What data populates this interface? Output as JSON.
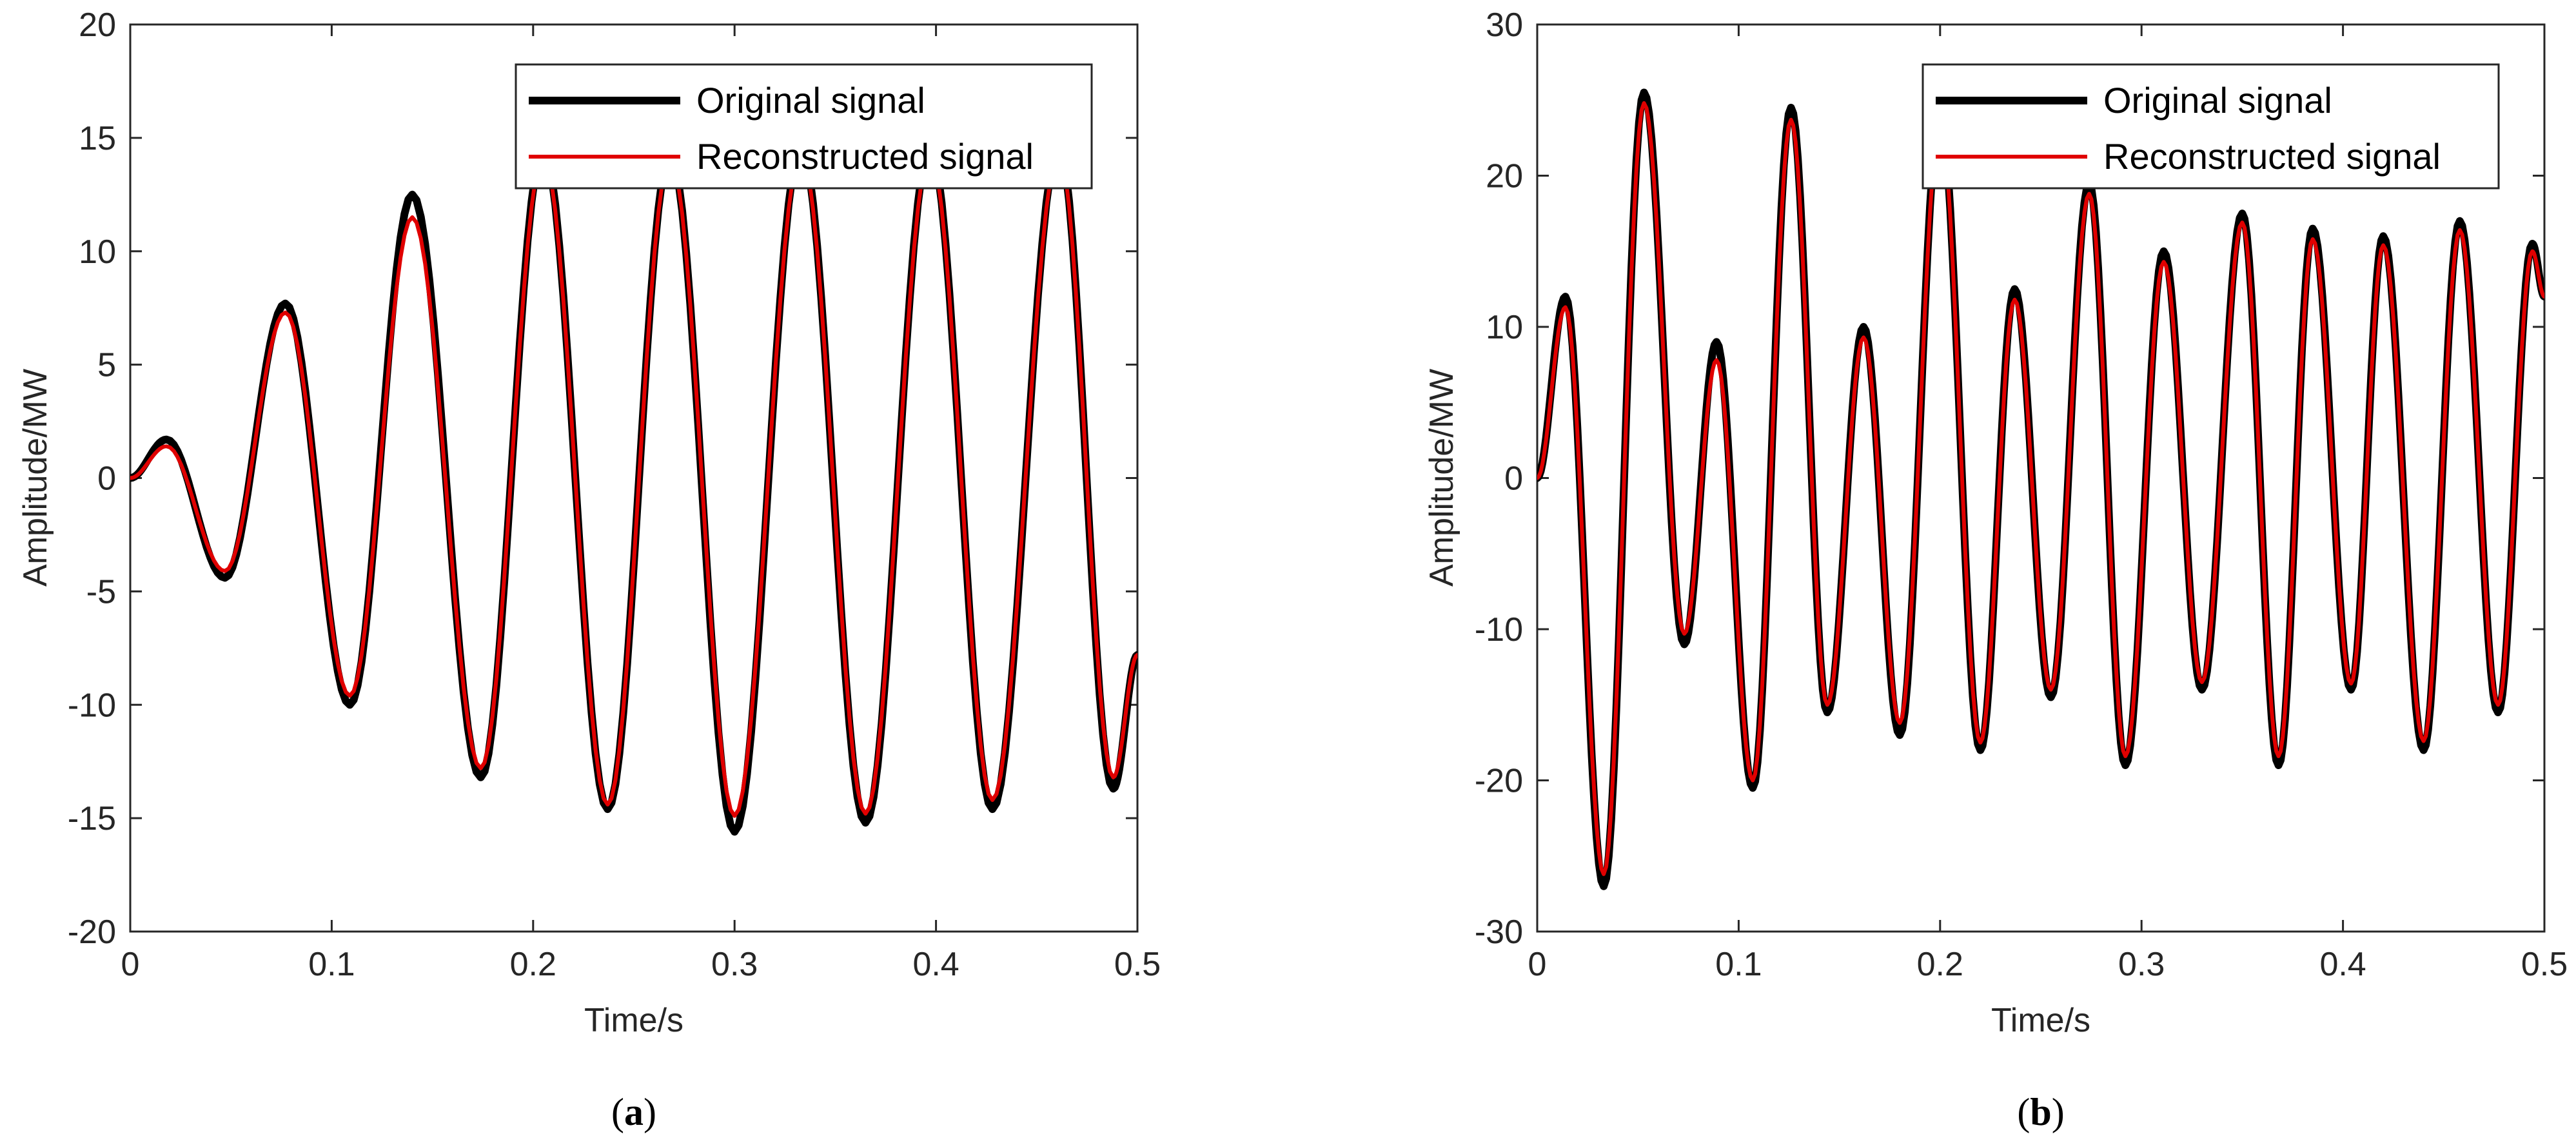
{
  "colors": {
    "original": "#000000",
    "reconstructed": "#e00000",
    "axes": "#262626",
    "background": "#ffffff"
  },
  "legend_labels": {
    "original": "Original signal",
    "reconstructed": "Reconstructed signal"
  },
  "chart_data": [
    {
      "type": "line",
      "panel": "a",
      "caption": "(a)",
      "caption_letter": "a",
      "xlabel": "Time/s",
      "ylabel": "Amplitude/MW",
      "xlim": [
        0,
        0.5
      ],
      "ylim": [
        -20,
        20
      ],
      "xticks": [
        0,
        0.1,
        0.2,
        0.3,
        0.4,
        0.5
      ],
      "xtick_labels": [
        "0",
        "0.1",
        "0.2",
        "0.3",
        "0.4",
        "0.5"
      ],
      "yticks": [
        -20,
        -15,
        -10,
        -5,
        0,
        5,
        10,
        15,
        20
      ],
      "ytick_labels": [
        "-20",
        "-15",
        "-10",
        "-5",
        "0",
        "5",
        "10",
        "15",
        "20"
      ],
      "grid": false,
      "legend_position": "top-right",
      "series": [
        {
          "name": "Original signal",
          "x": [
            0,
            0.018,
            0.047,
            0.077,
            0.109,
            0.14,
            0.174,
            0.205,
            0.237,
            0.268,
            0.3,
            0.333,
            0.365,
            0.397,
            0.428,
            0.461,
            0.488,
            0.5
          ],
          "y": [
            0,
            1.7,
            -4.4,
            7.7,
            -10,
            12.5,
            -13.2,
            14.5,
            -14.6,
            14.3,
            -15.6,
            14.6,
            -15.2,
            14.6,
            -14.6,
            14.6,
            -13.7,
            -7.8
          ]
        },
        {
          "name": "Reconstructed signal",
          "x": [
            0,
            0.018,
            0.047,
            0.077,
            0.109,
            0.14,
            0.174,
            0.205,
            0.237,
            0.268,
            0.3,
            0.333,
            0.365,
            0.397,
            0.428,
            0.461,
            0.488,
            0.5
          ],
          "y": [
            0,
            1.4,
            -4.1,
            7.3,
            -9.6,
            11.5,
            -12.8,
            14.2,
            -14.4,
            14.1,
            -14.9,
            14.3,
            -14.8,
            14.3,
            -14.2,
            14.3,
            -13.2,
            -7.8
          ]
        }
      ]
    },
    {
      "type": "line",
      "panel": "b",
      "caption": "(b)",
      "caption_letter": "b",
      "xlabel": "Time/s",
      "ylabel": "Amplitude/MW",
      "xlim": [
        0,
        0.5
      ],
      "ylim": [
        -30,
        30
      ],
      "xticks": [
        0,
        0.1,
        0.2,
        0.3,
        0.4,
        0.5
      ],
      "xtick_labels": [
        "0",
        "0.1",
        "0.2",
        "0.3",
        "0.4",
        "0.5"
      ],
      "yticks": [
        -30,
        -20,
        -10,
        0,
        10,
        20,
        30
      ],
      "ytick_labels": [
        "-30",
        "-20",
        "-10",
        "0",
        "10",
        "20",
        "30"
      ],
      "grid": false,
      "legend_position": "top-right",
      "series": [
        {
          "name": "Original signal",
          "x": [
            0,
            0.014,
            0.033,
            0.053,
            0.073,
            0.089,
            0.107,
            0.126,
            0.144,
            0.162,
            0.18,
            0.2,
            0.22,
            0.237,
            0.255,
            0.274,
            0.292,
            0.311,
            0.33,
            0.35,
            0.368,
            0.385,
            0.404,
            0.42,
            0.44,
            0.458,
            0.477,
            0.494,
            0.5
          ],
          "y": [
            0,
            12,
            -27,
            25.5,
            -11,
            9,
            -20.5,
            24.5,
            -15.5,
            10,
            -17,
            24,
            -18,
            12.5,
            -14.5,
            19.5,
            -19,
            15,
            -14,
            17.5,
            -19,
            16.5,
            -14,
            16,
            -18,
            17,
            -15.5,
            15.5,
            12
          ]
        },
        {
          "name": "Reconstructed signal",
          "x": [
            0,
            0.014,
            0.033,
            0.053,
            0.073,
            0.089,
            0.107,
            0.126,
            0.144,
            0.162,
            0.18,
            0.2,
            0.22,
            0.237,
            0.255,
            0.274,
            0.292,
            0.311,
            0.33,
            0.35,
            0.368,
            0.385,
            0.404,
            0.42,
            0.44,
            0.458,
            0.477,
            0.494,
            0.5
          ],
          "y": [
            0,
            11.3,
            -26.2,
            24.8,
            -10.3,
            7.8,
            -20,
            23.7,
            -15,
            9.3,
            -16.2,
            23.4,
            -17.5,
            11.8,
            -14,
            18.8,
            -18.4,
            14.3,
            -13.5,
            16.9,
            -18.4,
            15.8,
            -13.6,
            15.4,
            -17.4,
            16.4,
            -15,
            15,
            12
          ]
        }
      ]
    }
  ]
}
